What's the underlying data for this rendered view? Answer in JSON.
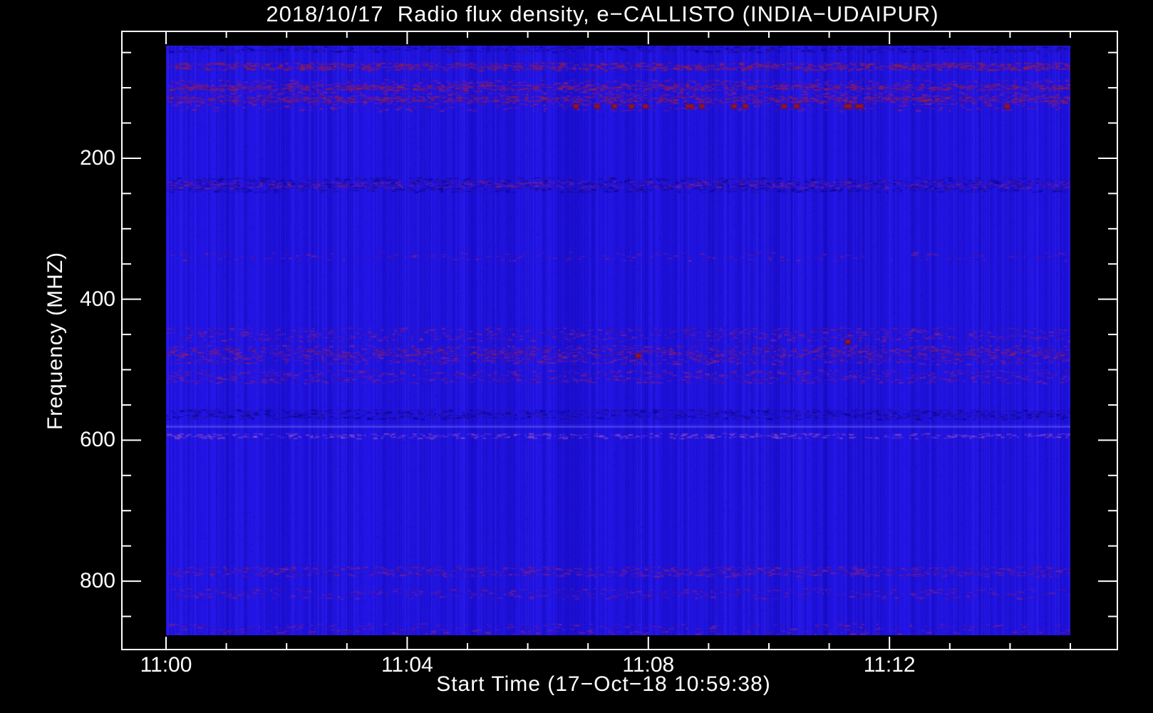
{
  "page": {
    "background": "#000000",
    "axis_color": "#ffffff",
    "text_color": "#ffffff"
  },
  "chart_data": {
    "type": "heatmap",
    "subtype": "radio-spectrogram",
    "title": "2018/10/17  Radio flux density, e−CALLISTO (INDIA−UDAIPUR)",
    "xlabel": "Start Time (17−Oct−18 10:59:38)",
    "ylabel": "Frequency (MHZ)",
    "station": "INDIA-UDAIPUR",
    "date": "2018/10/17",
    "start_time": "10:59:38",
    "y_axis_inverted": true,
    "y_range_mhz": [
      20,
      897
    ],
    "y_ticks_major": [
      {
        "freq": 200,
        "label": "200"
      },
      {
        "freq": 400,
        "label": "400"
      },
      {
        "freq": 600,
        "label": "600"
      },
      {
        "freq": 800,
        "label": "800"
      }
    ],
    "y_minor_step_mhz": 50,
    "x_ticks_major": [
      {
        "minute": 0,
        "label": "11:00"
      },
      {
        "minute": 4,
        "label": "11:04"
      },
      {
        "minute": 8,
        "label": "11:08"
      },
      {
        "minute": 12,
        "label": "11:12"
      }
    ],
    "x_minor_step_minutes": 1,
    "x_image_span_minutes": [
      0,
      15
    ],
    "grid": false,
    "legend": false,
    "colormap": {
      "base_blue": "#2315e8",
      "dark_column": "rgba(8,0,130,0.14)",
      "bright_column": "rgba(120,120,255,0.08)",
      "red_blob": "#7a0d24",
      "red_blob_core": "#93152e",
      "light_line": "rgba(140,140,255,0.45)",
      "palettes": {
        "navy": [
          "#0c0590",
          "#190cb4",
          "#2a149f"
        ],
        "purple": [
          "#5a17b2",
          "#6b1b9e",
          "#49119e",
          "#7d2090"
        ],
        "redpurple": [
          "#7a1878",
          "#8c1a58",
          "#962042",
          "#5a17b2"
        ],
        "pink": [
          "#b45cc0",
          "#a75cd0",
          "#c06ab0"
        ]
      }
    },
    "interference_bands": [
      {
        "f0": 41,
        "f1": 49,
        "palette": "navy",
        "density": 3.5,
        "note": "dark streaks at top edge"
      },
      {
        "f0": 64,
        "f1": 75,
        "palette": "redpurple",
        "density": 5.0,
        "note": "dense RFI row"
      },
      {
        "f0": 88,
        "f1": 124,
        "palette": "purple",
        "density": 2.2,
        "note": "broad speckled band"
      },
      {
        "f0": 95,
        "f1": 103,
        "palette": "redpurple",
        "density": 4.5,
        "note": "dense sub-band"
      },
      {
        "f0": 112,
        "f1": 120,
        "palette": "redpurple",
        "density": 4.0,
        "note": "dense sub-band"
      },
      {
        "f0": 124,
        "f1": 133,
        "palette": "purple",
        "density": 1.2,
        "note": "row containing red bursts"
      },
      {
        "f0": 227,
        "f1": 248,
        "palette": "navy",
        "density": 3.0,
        "note": "speckled band"
      },
      {
        "f0": 232,
        "f1": 242,
        "palette": "purple",
        "density": 3.0,
        "note": "speckled band"
      },
      {
        "f0": 333,
        "f1": 345,
        "palette": "purple",
        "density": 0.8,
        "note": "faint band"
      },
      {
        "f0": 440,
        "f1": 459,
        "palette": "purple",
        "density": 2.0,
        "note": "speckled band"
      },
      {
        "f0": 465,
        "f1": 492,
        "palette": "purple",
        "density": 2.6,
        "note": "speckled band"
      },
      {
        "f0": 470,
        "f1": 480,
        "palette": "redpurple",
        "density": 1.5,
        "note": "speckled band"
      },
      {
        "f0": 500,
        "f1": 519,
        "palette": "purple",
        "density": 2.2,
        "note": "speckled band"
      },
      {
        "f0": 556,
        "f1": 570,
        "palette": "navy",
        "density": 4.0,
        "note": "dark dash band"
      },
      {
        "f0": 590,
        "f1": 597,
        "palette": "pink",
        "density": 3.0,
        "note": "pinkish line near 600 MHz"
      },
      {
        "f0": 779,
        "f1": 793,
        "palette": "purple",
        "density": 3.0,
        "note": "speckled band"
      },
      {
        "f0": 810,
        "f1": 825,
        "palette": "purple",
        "density": 1.5,
        "note": "faint band"
      },
      {
        "f0": 860,
        "f1": 875,
        "palette": "purple",
        "density": 1.2,
        "note": "bottom speckle"
      }
    ],
    "light_line_mhz": 580,
    "red_burst_events": [
      {
        "t": 6.8,
        "f": 127,
        "w": 1
      },
      {
        "t": 7.15,
        "f": 127,
        "w": 1
      },
      {
        "t": 7.44,
        "f": 127,
        "w": 1
      },
      {
        "t": 7.72,
        "f": 127,
        "w": 1
      },
      {
        "t": 7.95,
        "f": 127,
        "w": 1
      },
      {
        "t": 8.69,
        "f": 127,
        "w": 2
      },
      {
        "t": 8.89,
        "f": 127,
        "w": 1
      },
      {
        "t": 9.42,
        "f": 127,
        "w": 1
      },
      {
        "t": 9.61,
        "f": 127,
        "w": 1
      },
      {
        "t": 10.25,
        "f": 127,
        "w": 1
      },
      {
        "t": 10.46,
        "f": 127,
        "w": 1
      },
      {
        "t": 11.31,
        "f": 127,
        "w": 2
      },
      {
        "t": 11.5,
        "f": 127,
        "w": 2
      },
      {
        "t": 13.95,
        "f": 127,
        "w": 1
      },
      {
        "t": 7.83,
        "f": 481,
        "w": 1
      },
      {
        "t": 11.31,
        "f": 461,
        "w": 1
      }
    ]
  }
}
